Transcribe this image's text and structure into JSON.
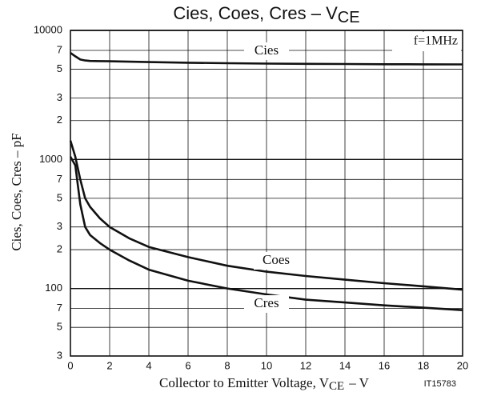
{
  "chart_data": {
    "type": "line",
    "title": {
      "text": "Cies, Coes, Cres – V",
      "sub": "CE"
    },
    "xlabel": {
      "text": "Collector to Emitter Voltage, V",
      "sub": "CE",
      "unit": "– V"
    },
    "ylabel": "Cies, Coes, Cres – pF",
    "annotations": [
      "f=1MHz",
      "IT15783"
    ],
    "x": [
      0,
      0.25,
      0.5,
      0.75,
      1,
      1.5,
      2,
      3,
      4,
      6,
      8,
      10,
      12,
      14,
      16,
      18,
      20
    ],
    "series": [
      {
        "name": "Cies",
        "color": "#111111",
        "values": [
          6700,
          6300,
          5950,
          5850,
          5800,
          5780,
          5760,
          5720,
          5680,
          5620,
          5570,
          5530,
          5510,
          5490,
          5470,
          5460,
          5450
        ]
      },
      {
        "name": "Coes",
        "color": "#111111",
        "values": [
          1400,
          1050,
          700,
          500,
          430,
          350,
          300,
          245,
          210,
          175,
          150,
          135,
          125,
          117,
          110,
          104,
          98
        ]
      },
      {
        "name": "Cres",
        "color": "#111111",
        "values": [
          1050,
          900,
          450,
          300,
          260,
          225,
          200,
          165,
          140,
          115,
          100,
          90,
          82,
          78,
          74,
          71,
          68
        ]
      }
    ],
    "xlim": [
      0,
      20
    ],
    "xticks": [
      0,
      2,
      4,
      6,
      8,
      10,
      12,
      14,
      16,
      18,
      20
    ],
    "ylim": [
      30,
      10000
    ],
    "log_y": true,
    "grid": true,
    "yticks": [
      {
        "value": 30,
        "label": "3"
      },
      {
        "value": 50,
        "label": "5"
      },
      {
        "value": 70,
        "label": "7"
      },
      100,
      {
        "value": 200,
        "label": "2"
      },
      {
        "value": 300,
        "label": "3"
      },
      {
        "value": 500,
        "label": "5"
      },
      {
        "value": 700,
        "label": "7"
      },
      1000,
      {
        "value": 2000,
        "label": "2"
      },
      {
        "value": 3000,
        "label": "3"
      },
      {
        "value": 5000,
        "label": "5"
      },
      {
        "value": 7000,
        "label": "7"
      },
      10000
    ]
  }
}
